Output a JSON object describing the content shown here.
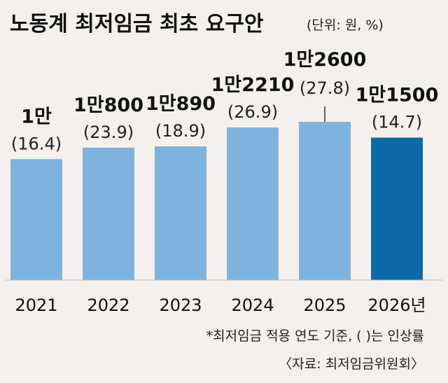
{
  "title": "노동계 최저임금 최초 요구안",
  "unit_note": "(단위: 원, %)",
  "chart_data": {
    "type": "bar",
    "categories": [
      "2021",
      "2022",
      "2023",
      "2024",
      "2025",
      "2026년"
    ],
    "values": [
      10000,
      10800,
      10890,
      12210,
      12600,
      11500
    ],
    "value_labels": [
      "1만",
      "1만800",
      "1만890",
      "1만2210",
      "1만2600",
      "1만1500"
    ],
    "rate_labels": [
      "(16.4)",
      "(23.9)",
      "(18.9)",
      "(26.9)",
      "(27.8)",
      "(14.7)"
    ],
    "rates": [
      16.4,
      23.9,
      18.9,
      26.9,
      27.8,
      14.7
    ],
    "colors": {
      "bar": "#7fb3df",
      "highlight": "#0d6aa8"
    },
    "highlight_index": 5,
    "ylim": [
      0,
      14000
    ]
  },
  "footnote": "*최저임금 적용 연도 기준, (  )는 인상률",
  "source": "〈자료: 최저임금위원회〉"
}
